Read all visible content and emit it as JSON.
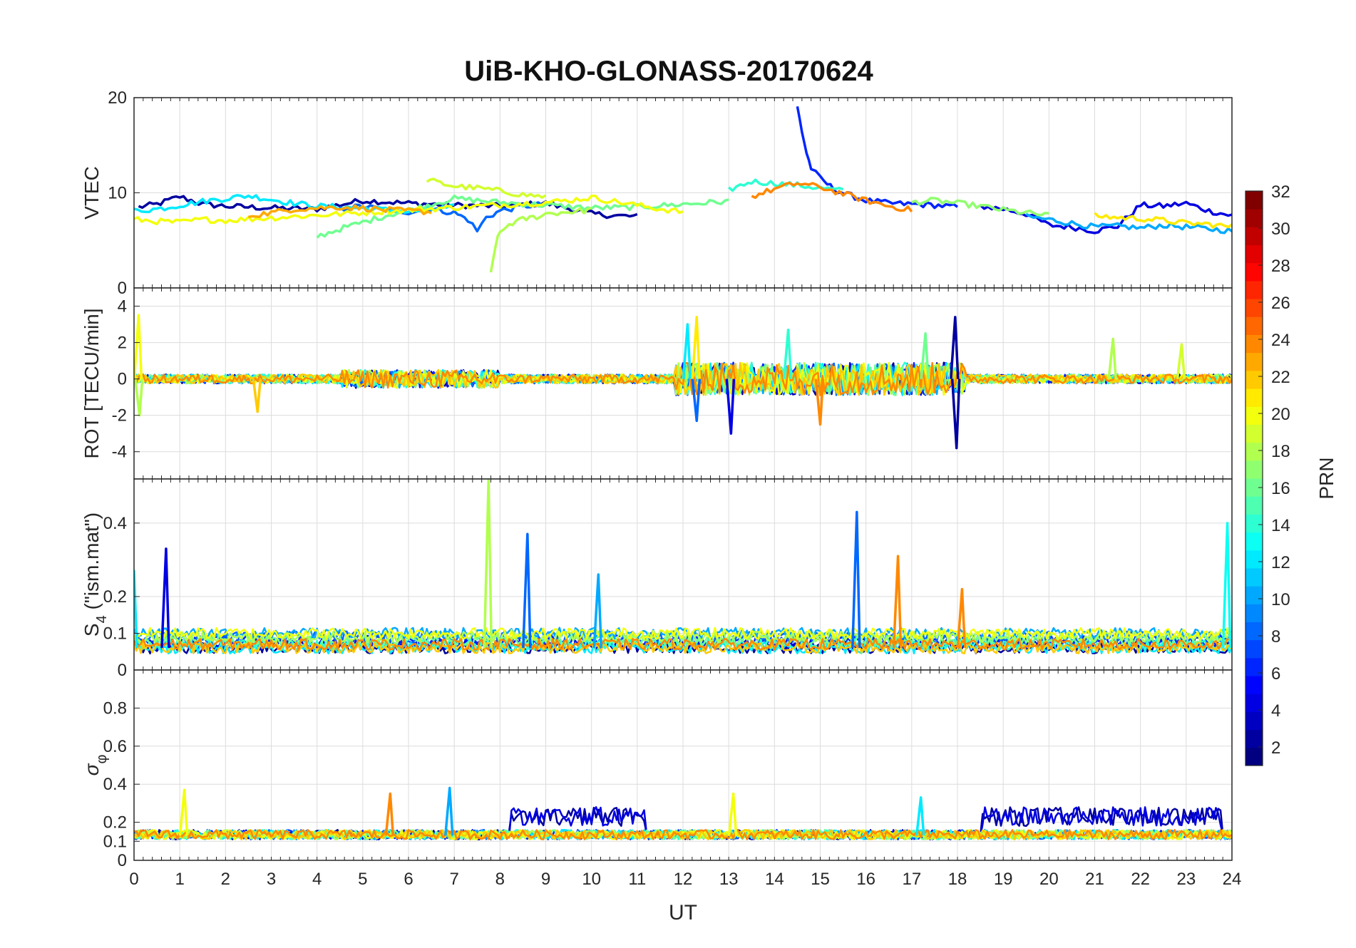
{
  "chart_data": {
    "type": "line",
    "title": "UiB-KHO-GLONASS-20170624",
    "xlabel": "UT",
    "xlim": [
      0,
      24
    ],
    "xticks": [
      0,
      1,
      2,
      3,
      4,
      5,
      6,
      7,
      8,
      9,
      10,
      11,
      12,
      13,
      14,
      15,
      16,
      17,
      18,
      19,
      20,
      21,
      22,
      23,
      24
    ],
    "grid": true,
    "colorbar": {
      "label": "PRN",
      "range": [
        1,
        32
      ],
      "ticks": [
        2,
        4,
        6,
        8,
        10,
        12,
        14,
        16,
        18,
        20,
        22,
        24,
        26,
        28,
        30,
        32
      ],
      "colormap": "jet"
    },
    "panels": [
      {
        "id": "vtec",
        "ylabel": "VTEC",
        "ylim": [
          0,
          20
        ],
        "yticks": [
          0,
          10,
          20
        ],
        "series": [
          {
            "prn": 2,
            "x": [
              0.1,
              0.5,
              1.0,
              1.5,
              2.0,
              3.0,
              4.0,
              5.0,
              6.0,
              7.0,
              8.0,
              9.0,
              10.0,
              10.5,
              11.0
            ],
            "y": [
              8.5,
              8.8,
              9.6,
              8.8,
              8.6,
              8.4,
              8.3,
              9.2,
              8.9,
              8.7,
              8.6,
              8.9,
              7.8,
              7.6,
              7.5
            ]
          },
          {
            "prn": 4,
            "x": [
              18.5,
              19.0,
              19.5,
              20.0,
              20.5,
              21.0,
              21.5,
              22.0,
              22.5,
              23.0,
              23.5,
              24.0
            ],
            "y": [
              8.6,
              8.3,
              7.8,
              6.6,
              6.4,
              6.0,
              6.5,
              8.7,
              8.6,
              8.9,
              8.1,
              7.6
            ]
          },
          {
            "prn": 6,
            "x": [
              14.5,
              14.6,
              14.7,
              14.8,
              15.0,
              15.3,
              15.6,
              16.0,
              16.5,
              17.0,
              17.5,
              18.0
            ],
            "y": [
              19.0,
              16.5,
              14.2,
              12.6,
              11.5,
              10.4,
              9.8,
              9.2,
              8.9,
              8.8,
              8.7,
              8.5
            ]
          },
          {
            "prn": 8,
            "x": [
              4.5,
              5.0,
              5.5,
              6.0,
              6.5,
              7.0,
              7.3,
              7.5,
              7.7,
              8.0,
              8.5,
              9.0
            ],
            "y": [
              8.3,
              8.6,
              8.2,
              8.0,
              8.3,
              7.9,
              7.2,
              6.0,
              7.4,
              8.1,
              8.6,
              8.8
            ]
          },
          {
            "prn": 10,
            "x": [
              19.5,
              20.0,
              20.5,
              21.0,
              21.5,
              22.0,
              22.5,
              23.0,
              23.5,
              24.0
            ],
            "y": [
              7.5,
              7.2,
              6.8,
              6.4,
              6.5,
              6.3,
              6.6,
              6.4,
              6.2,
              6.0
            ]
          },
          {
            "prn": 12,
            "x": [
              0.0,
              0.5,
              1.0,
              1.5,
              2.0,
              2.5,
              3.0,
              3.5,
              4.0,
              5.0,
              6.0,
              7.0
            ],
            "y": [
              8.1,
              8.3,
              8.7,
              9.1,
              9.4,
              9.7,
              9.3,
              8.9,
              8.6,
              8.4,
              8.0,
              8.5
            ]
          },
          {
            "prn": 14,
            "x": [
              13.0,
              13.5,
              14.0,
              14.5,
              15.0,
              15.5
            ],
            "y": [
              10.3,
              11.2,
              11.0,
              10.8,
              10.5,
              10.2
            ]
          },
          {
            "prn": 16,
            "x": [
              4.0,
              4.5,
              5.0,
              5.5,
              6.0,
              6.5,
              7.0,
              8.0,
              9.0,
              10.0,
              11.0,
              12.0,
              13.0
            ],
            "y": [
              5.4,
              6.2,
              6.9,
              7.6,
              8.2,
              8.8,
              9.4,
              9.0,
              8.7,
              8.4,
              8.5,
              8.8,
              9.1
            ]
          },
          {
            "prn": 17,
            "x": [
              17.0,
              17.5,
              18.0,
              18.5,
              19.0,
              19.5,
              20.0
            ],
            "y": [
              9.0,
              9.2,
              8.9,
              8.6,
              8.2,
              7.9,
              7.6
            ]
          },
          {
            "prn": 18,
            "x": [
              7.8,
              7.9,
              8.0,
              8.2,
              8.5,
              8.8,
              9.0,
              9.5,
              10.0
            ],
            "y": [
              1.5,
              4.5,
              5.8,
              6.7,
              7.2,
              7.5,
              7.8,
              8.0,
              8.2
            ]
          },
          {
            "prn": 19,
            "x": [
              6.4,
              6.7,
              7.0,
              7.5,
              8.0,
              8.5,
              9.0
            ],
            "y": [
              11.4,
              11.0,
              10.7,
              10.5,
              10.2,
              9.8,
              9.6
            ]
          },
          {
            "prn": 20,
            "x": [
              0.0,
              0.5,
              1.0,
              1.5,
              2.0,
              9.0,
              9.5,
              10.0,
              10.5,
              11.0,
              11.5,
              12.0
            ],
            "y": [
              7.2,
              7.0,
              6.9,
              7.2,
              7.1,
              9.0,
              9.2,
              9.5,
              9.1,
              8.7,
              8.3,
              8.0
            ]
          },
          {
            "prn": 21,
            "x": [
              21.0,
              21.5,
              22.0,
              22.5,
              23.0,
              23.5,
              24.0
            ],
            "y": [
              7.6,
              7.4,
              7.3,
              7.1,
              6.8,
              6.7,
              6.4
            ]
          },
          {
            "prn": 23,
            "x": [
              2.5,
              3.0,
              3.5,
              4.0,
              4.5,
              5.0,
              5.5,
              6.0,
              6.5
            ],
            "y": [
              7.6,
              7.9,
              8.3,
              8.4,
              8.5,
              8.4,
              8.2,
              8.1,
              8.0
            ]
          },
          {
            "prn": 24,
            "x": [
              13.5,
              14.0,
              14.5,
              15.0,
              15.5,
              16.0,
              16.5,
              17.0
            ],
            "y": [
              9.6,
              10.4,
              11.0,
              10.6,
              9.9,
              9.2,
              8.6,
              8.2
            ]
          }
        ]
      },
      {
        "id": "rot",
        "ylabel": "ROT [TECU/min]",
        "ylim": [
          -5.5,
          5
        ],
        "yticks": [
          -4,
          -2,
          0,
          2,
          4
        ],
        "spikes": [
          {
            "prn": 20,
            "x": 0.1,
            "y": 3.5
          },
          {
            "prn": 18,
            "x": 0.12,
            "y": -2.0
          },
          {
            "prn": 22,
            "x": 2.7,
            "y": -1.8
          },
          {
            "prn": 12,
            "x": 12.1,
            "y": 3.0
          },
          {
            "prn": 21,
            "x": 12.3,
            "y": 3.4
          },
          {
            "prn": 8,
            "x": 12.3,
            "y": -2.3
          },
          {
            "prn": 4,
            "x": 13.05,
            "y": -3.0
          },
          {
            "prn": 14,
            "x": 14.3,
            "y": 2.7
          },
          {
            "prn": 24,
            "x": 15.0,
            "y": -2.5
          },
          {
            "prn": 16,
            "x": 17.3,
            "y": 2.5
          },
          {
            "prn": 2,
            "x": 17.95,
            "y": 3.4
          },
          {
            "prn": 2,
            "x": 17.98,
            "y": -3.8
          },
          {
            "prn": 18,
            "x": 21.4,
            "y": 2.2
          },
          {
            "prn": 19,
            "x": 22.9,
            "y": 1.9
          }
        ]
      },
      {
        "id": "s4",
        "ylabel": "S4 (\"ism.mat\")",
        "ylabel_main": "S",
        "ylabel_sub": "4",
        "ylabel_rest": " (\"ism.mat\")",
        "ylim": [
          0,
          0.52
        ],
        "yticks": [
          0,
          0.1,
          0.2,
          0.4
        ],
        "tick_labels": [
          "0",
          "0.1",
          "0.2",
          "0.4"
        ],
        "spikes": [
          {
            "prn": 12,
            "x": 0.0,
            "y": 0.27
          },
          {
            "prn": 4,
            "x": 0.7,
            "y": 0.33
          },
          {
            "prn": 18,
            "x": 7.75,
            "y": 0.52
          },
          {
            "prn": 8,
            "x": 8.6,
            "y": 0.37
          },
          {
            "prn": 10,
            "x": 10.15,
            "y": 0.26
          },
          {
            "prn": 8,
            "x": 15.8,
            "y": 0.43
          },
          {
            "prn": 24,
            "x": 16.7,
            "y": 0.31
          },
          {
            "prn": 24,
            "x": 18.1,
            "y": 0.22
          },
          {
            "prn": 13,
            "x": 23.9,
            "y": 0.4
          }
        ]
      },
      {
        "id": "sigma",
        "ylabel": "σφ",
        "ylabel_main": "σ",
        "ylabel_sub": "φ",
        "ylim": [
          0,
          1
        ],
        "yticks": [
          0,
          0.1,
          0.2,
          0.4,
          0.6,
          0.8
        ],
        "tick_labels": [
          "0",
          "0.1",
          "0.2",
          "0.4",
          "0.6",
          "0.8"
        ],
        "spikes": [
          {
            "prn": 20,
            "x": 1.1,
            "y": 0.37
          },
          {
            "prn": 24,
            "x": 5.6,
            "y": 0.35
          },
          {
            "prn": 10,
            "x": 6.9,
            "y": 0.38
          },
          {
            "prn": 20,
            "x": 13.1,
            "y": 0.35
          },
          {
            "prn": 12,
            "x": 17.2,
            "y": 0.33
          }
        ]
      }
    ]
  }
}
